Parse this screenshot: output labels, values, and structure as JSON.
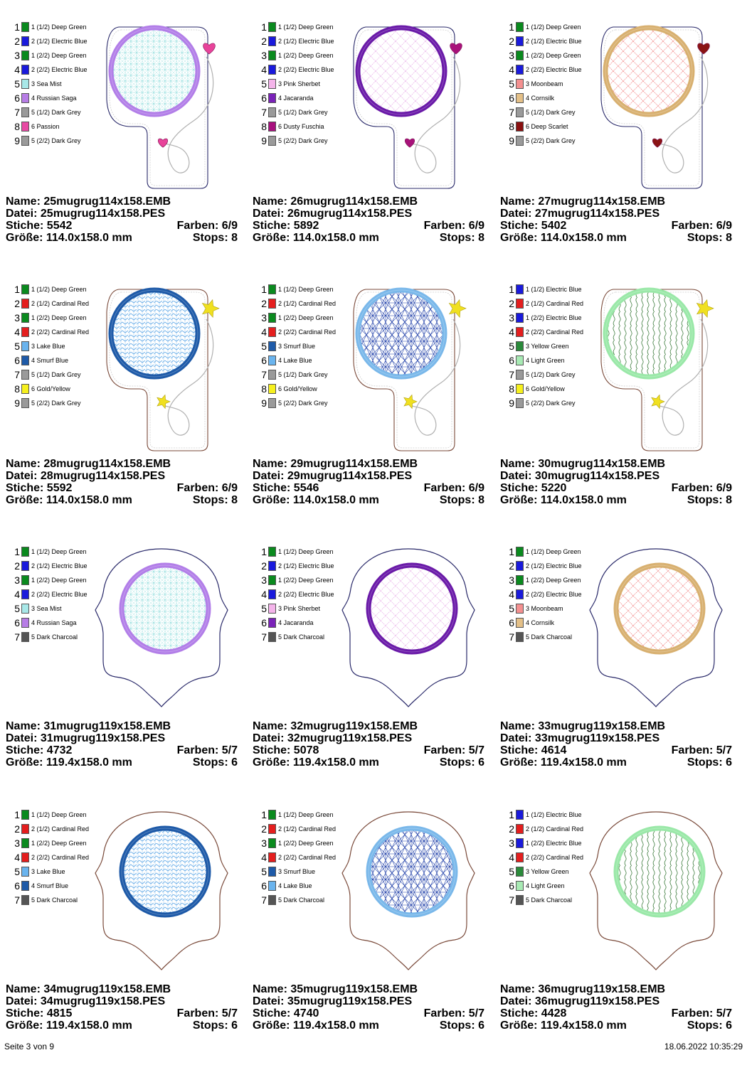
{
  "footer": {
    "page": "Seite 3 von 9",
    "timestamp": "18.06.2022 10:35:29"
  },
  "designs": [
    {
      "name": "Name: 25mugrug114x158.EMB",
      "file": "Datei: 25mugrug114x158.PES",
      "stitches": "Stiche: 5542",
      "colors": "Farben: 6/9",
      "size": "Größe: 114.0x158.0 mm",
      "stops": "Stops: 8",
      "shape": "tag",
      "ring": "#b27ee8",
      "fill": "#4fc8c8",
      "pattern": "lattice",
      "charm": "heart",
      "charm_color": "#e8439a",
      "outline": "#2a2a6a",
      "legend": [
        [
          "1",
          "1 (1/2) Deep Green",
          "#0a8a1e"
        ],
        [
          "2",
          "2 (1/2) Electric Blue",
          "#1a1adc"
        ],
        [
          "3",
          "1 (2/2) Deep Green",
          "#0a8a1e"
        ],
        [
          "4",
          "2 (2/2) Electric Blue",
          "#1a1adc"
        ],
        [
          "5",
          "3 Sea Mist",
          "#a8e8e8"
        ],
        [
          "6",
          "4 Russian Saga",
          "#b77de6"
        ],
        [
          "7",
          "5 (1/2) Dark Grey",
          "#9a9a9a"
        ],
        [
          "8",
          "6 Passion",
          "#e84aa4"
        ],
        [
          "9",
          "5 (2/2) Dark Grey",
          "#9a9a9a"
        ]
      ]
    },
    {
      "name": "Name: 26mugrug114x158.EMB",
      "file": "Datei: 26mugrug114x158.PES",
      "stitches": "Stiche: 5892",
      "colors": "Farben: 6/9",
      "size": "Größe: 114.0x158.0 mm",
      "stops": "Stops: 8",
      "shape": "tag",
      "ring": "#6a1aa8",
      "fill": "#e6a8e6",
      "pattern": "diamond",
      "charm": "heart",
      "charm_color": "#a8127a",
      "outline": "#2a2a6a",
      "legend": [
        [
          "1",
          "1 (1/2) Deep Green",
          "#0a8a1e"
        ],
        [
          "2",
          "2 (1/2) Electric Blue",
          "#1a1adc"
        ],
        [
          "3",
          "1 (2/2) Deep Green",
          "#0a8a1e"
        ],
        [
          "4",
          "2 (2/2) Electric Blue",
          "#1a1adc"
        ],
        [
          "5",
          "3 Pink Sherbet",
          "#f4b4ea"
        ],
        [
          "6",
          "4 Jacaranda",
          "#7a22b8"
        ],
        [
          "7",
          "5 (1/2) Dark Grey",
          "#9a9a9a"
        ],
        [
          "8",
          "6 Dusty Fuschia",
          "#a8107e"
        ],
        [
          "9",
          "5 (2/2) Dark Grey",
          "#9a9a9a"
        ]
      ]
    },
    {
      "name": "Name: 27mugrug114x158.EMB",
      "file": "Datei: 27mugrug114x158.PES",
      "stitches": "Stiche: 5402",
      "colors": "Farben: 6/9",
      "size": "Größe: 114.0x158.0 mm",
      "stops": "Stops: 8",
      "shape": "tag",
      "ring": "#d8b070",
      "fill": "#f07878",
      "pattern": "diamond",
      "charm": "heart",
      "charm_color": "#8a1414",
      "outline": "#2a2a6a",
      "legend": [
        [
          "1",
          "1 (1/2) Deep Green",
          "#0a8a1e"
        ],
        [
          "2",
          "2 (1/2) Electric Blue",
          "#1a1adc"
        ],
        [
          "3",
          "1 (2/2) Deep Green",
          "#0a8a1e"
        ],
        [
          "4",
          "2 (2/2) Electric Blue",
          "#1a1adc"
        ],
        [
          "5",
          "3 Moonbeam",
          "#f49090"
        ],
        [
          "6",
          "4 Cornsilk",
          "#e4c088"
        ],
        [
          "7",
          "5 (1/2) Dark Grey",
          "#9a9a9a"
        ],
        [
          "8",
          "6 Deep Scarlet",
          "#8a1010"
        ],
        [
          "9",
          "5 (2/2) Dark Grey",
          "#9a9a9a"
        ]
      ]
    },
    {
      "name": "Name: 28mugrug114x158.EMB",
      "file": "Datei: 28mugrug114x158.PES",
      "stitches": "Stiche: 5592",
      "colors": "Farben: 6/9",
      "size": "Größe: 114.0x158.0 mm",
      "stops": "Stops: 8",
      "shape": "tag",
      "ring": "#1e5aa8",
      "fill": "#6aaee8",
      "pattern": "zigzag",
      "charm": "star",
      "charm_color": "#f0e020",
      "outline": "#7a4a3a",
      "legend": [
        [
          "1",
          "1 (1/2) Deep Green",
          "#0a8a1e"
        ],
        [
          "2",
          "2 (1/2) Cardinal Red",
          "#e41e1e"
        ],
        [
          "3",
          "1 (2/2) Deep Green",
          "#0a8a1e"
        ],
        [
          "4",
          "2 (2/2) Cardinal Red",
          "#e41e1e"
        ],
        [
          "5",
          "3 Lake Blue",
          "#6ab4ee"
        ],
        [
          "6",
          "4 Smurf Blue",
          "#1e5aa8"
        ],
        [
          "7",
          "5 (1/2) Dark Grey",
          "#9a9a9a"
        ],
        [
          "8",
          "6 Gold/Yellow",
          "#f6f01e"
        ],
        [
          "9",
          "5 (2/2) Dark Grey",
          "#9a9a9a"
        ]
      ]
    },
    {
      "name": "Name: 29mugrug114x158.EMB",
      "file": "Datei: 29mugrug114x158.PES",
      "stitches": "Stiche: 5546",
      "colors": "Farben: 6/9",
      "size": "Größe: 114.0x158.0 mm",
      "stops": "Stops: 8",
      "shape": "tag",
      "ring": "#7ab8ea",
      "fill": "#1e3ea8",
      "pattern": "star",
      "charm": "star",
      "charm_color": "#f0e020",
      "outline": "#7a4a3a",
      "legend": [
        [
          "1",
          "1 (1/2) Deep Green",
          "#0a8a1e"
        ],
        [
          "2",
          "2 (1/2) Cardinal Red",
          "#e41e1e"
        ],
        [
          "3",
          "1 (2/2) Deep Green",
          "#0a8a1e"
        ],
        [
          "4",
          "2 (2/2) Cardinal Red",
          "#e41e1e"
        ],
        [
          "5",
          "3 Smurf Blue",
          "#1e5aa8"
        ],
        [
          "6",
          "4 Lake Blue",
          "#6ab4ee"
        ],
        [
          "7",
          "5 (1/2) Dark Grey",
          "#9a9a9a"
        ],
        [
          "8",
          "6 Gold/Yellow",
          "#f6f01e"
        ],
        [
          "9",
          "5 (2/2) Dark Grey",
          "#9a9a9a"
        ]
      ]
    },
    {
      "name": "Name: 30mugrug114x158.EMB",
      "file": "Datei: 30mugrug114x158.PES",
      "stitches": "Stiche: 5220",
      "colors": "Farben: 6/9",
      "size": "Größe: 114.0x158.0 mm",
      "stops": "Stops: 8",
      "shape": "tag",
      "ring": "#9ae8a8",
      "fill": "#3a7a3a",
      "pattern": "wave",
      "charm": "star",
      "charm_color": "#f0e020",
      "outline": "#7a4a3a",
      "legend": [
        [
          "1",
          "1 (1/2) Electric Blue",
          "#1a1adc"
        ],
        [
          "2",
          "2 (1/2) Cardinal Red",
          "#e41e1e"
        ],
        [
          "3",
          "1 (2/2) Electric Blue",
          "#1a1adc"
        ],
        [
          "4",
          "2 (2/2) Cardinal Red",
          "#e41e1e"
        ],
        [
          "5",
          "3 Yellow Green",
          "#2a8a3a"
        ],
        [
          "6",
          "4 Light Green",
          "#a8eab4"
        ],
        [
          "7",
          "5 (1/2) Dark Grey",
          "#9a9a9a"
        ],
        [
          "8",
          "6 Gold/Yellow",
          "#f6f01e"
        ],
        [
          "9",
          "5 (2/2) Dark Grey",
          "#9a9a9a"
        ]
      ]
    },
    {
      "name": "Name: 31mugrug119x158.EMB",
      "file": "Datei: 31mugrug119x158.PES",
      "stitches": "Stiche: 4732",
      "colors": "Farben: 5/7",
      "size": "Größe: 119.4x158.0 mm",
      "stops": "Stops: 6",
      "shape": "frame",
      "ring": "#b27ee8",
      "fill": "#4fc8c8",
      "pattern": "lattice",
      "charm": "",
      "charm_color": "",
      "outline": "#2a2a6a",
      "legend": [
        [
          "1",
          "1 (1/2) Deep Green",
          "#0a8a1e"
        ],
        [
          "2",
          "2 (1/2) Electric Blue",
          "#1a1adc"
        ],
        [
          "3",
          "1 (2/2) Deep Green",
          "#0a8a1e"
        ],
        [
          "4",
          "2 (2/2) Electric Blue",
          "#1a1adc"
        ],
        [
          "5",
          "3 Sea Mist",
          "#a8e8e8"
        ],
        [
          "6",
          "4 Russian Saga",
          "#b77de6"
        ],
        [
          "7",
          "5 Dark Charcoal",
          "#555555"
        ]
      ]
    },
    {
      "name": "Name: 32mugrug119x158.EMB",
      "file": "Datei: 32mugrug119x158.PES",
      "stitches": "Stiche: 5078",
      "colors": "Farben: 5/7",
      "size": "Größe: 119.4x158.0 mm",
      "stops": "Stops: 6",
      "shape": "frame",
      "ring": "#6a1aa8",
      "fill": "#e6a8e6",
      "pattern": "diamond",
      "charm": "",
      "charm_color": "",
      "outline": "#2a2a6a",
      "legend": [
        [
          "1",
          "1 (1/2) Deep Green",
          "#0a8a1e"
        ],
        [
          "2",
          "2 (1/2) Electric Blue",
          "#1a1adc"
        ],
        [
          "3",
          "1 (2/2) Deep Green",
          "#0a8a1e"
        ],
        [
          "4",
          "2 (2/2) Electric Blue",
          "#1a1adc"
        ],
        [
          "5",
          "3 Pink Sherbet",
          "#f4b4ea"
        ],
        [
          "6",
          "4 Jacaranda",
          "#7a22b8"
        ],
        [
          "7",
          "5 Dark Charcoal",
          "#555555"
        ]
      ]
    },
    {
      "name": "Name: 33mugrug119x158.EMB",
      "file": "Datei: 33mugrug119x158.PES",
      "stitches": "Stiche: 4614",
      "colors": "Farben: 5/7",
      "size": "Größe: 119.4x158.0 mm",
      "stops": "Stops: 6",
      "shape": "frame",
      "ring": "#d8b070",
      "fill": "#f07878",
      "pattern": "diamond",
      "charm": "",
      "charm_color": "",
      "outline": "#2a2a6a",
      "legend": [
        [
          "1",
          "1 (1/2) Deep Green",
          "#0a8a1e"
        ],
        [
          "2",
          "2 (1/2) Electric Blue",
          "#1a1adc"
        ],
        [
          "3",
          "1 (2/2) Deep Green",
          "#0a8a1e"
        ],
        [
          "4",
          "2 (2/2) Electric Blue",
          "#1a1adc"
        ],
        [
          "5",
          "3 Moonbeam",
          "#f49090"
        ],
        [
          "6",
          "4 Cornsilk",
          "#e4c088"
        ],
        [
          "7",
          "5 Dark Charcoal",
          "#555555"
        ]
      ]
    },
    {
      "name": "Name: 34mugrug119x158.EMB",
      "file": "Datei: 34mugrug119x158.PES",
      "stitches": "Stiche: 4815",
      "colors": "Farben: 5/7",
      "size": "Größe: 119.4x158.0 mm",
      "stops": "Stops: 6",
      "shape": "frame",
      "ring": "#1e5aa8",
      "fill": "#6aaee8",
      "pattern": "zigzag",
      "charm": "",
      "charm_color": "",
      "outline": "#7a4a3a",
      "legend": [
        [
          "1",
          "1 (1/2) Deep Green",
          "#0a8a1e"
        ],
        [
          "2",
          "2 (1/2) Cardinal Red",
          "#e41e1e"
        ],
        [
          "3",
          "1 (2/2) Deep Green",
          "#0a8a1e"
        ],
        [
          "4",
          "2 (2/2) Cardinal Red",
          "#e41e1e"
        ],
        [
          "5",
          "3 Lake Blue",
          "#6ab4ee"
        ],
        [
          "6",
          "4 Smurf Blue",
          "#1e5aa8"
        ],
        [
          "7",
          "5 Dark Charcoal",
          "#555555"
        ]
      ]
    },
    {
      "name": "Name: 35mugrug119x158.EMB",
      "file": "Datei: 35mugrug119x158.PES",
      "stitches": "Stiche: 4740",
      "colors": "Farben: 5/7",
      "size": "Größe: 119.4x158.0 mm",
      "stops": "Stops: 6",
      "shape": "frame",
      "ring": "#7ab8ea",
      "fill": "#1e3ea8",
      "pattern": "star",
      "charm": "",
      "charm_color": "",
      "outline": "#7a4a3a",
      "legend": [
        [
          "1",
          "1 (1/2) Deep Green",
          "#0a8a1e"
        ],
        [
          "2",
          "2 (1/2) Cardinal Red",
          "#e41e1e"
        ],
        [
          "3",
          "1 (2/2) Deep Green",
          "#0a8a1e"
        ],
        [
          "4",
          "2 (2/2) Cardinal Red",
          "#e41e1e"
        ],
        [
          "5",
          "3 Smurf Blue",
          "#1e5aa8"
        ],
        [
          "6",
          "4 Lake Blue",
          "#6ab4ee"
        ],
        [
          "7",
          "5 Dark Charcoal",
          "#555555"
        ]
      ]
    },
    {
      "name": "Name: 36mugrug119x158.EMB",
      "file": "Datei: 36mugrug119x158.PES",
      "stitches": "Stiche: 4428",
      "colors": "Farben: 5/7",
      "size": "Größe: 119.4x158.0 mm",
      "stops": "Stops: 6",
      "shape": "frame",
      "ring": "#9ae8a8",
      "fill": "#3a7a3a",
      "pattern": "wave",
      "charm": "",
      "charm_color": "",
      "outline": "#7a4a3a",
      "legend": [
        [
          "1",
          "1 (1/2) Electric Blue",
          "#1a1adc"
        ],
        [
          "2",
          "2 (1/2) Cardinal Red",
          "#e41e1e"
        ],
        [
          "3",
          "1 (2/2) Electric Blue",
          "#1a1adc"
        ],
        [
          "4",
          "2 (2/2) Cardinal Red",
          "#e41e1e"
        ],
        [
          "5",
          "3 Yellow Green",
          "#2a8a3a"
        ],
        [
          "6",
          "4 Light Green",
          "#a8eab4"
        ],
        [
          "7",
          "5 Dark Charcoal",
          "#555555"
        ]
      ]
    }
  ]
}
